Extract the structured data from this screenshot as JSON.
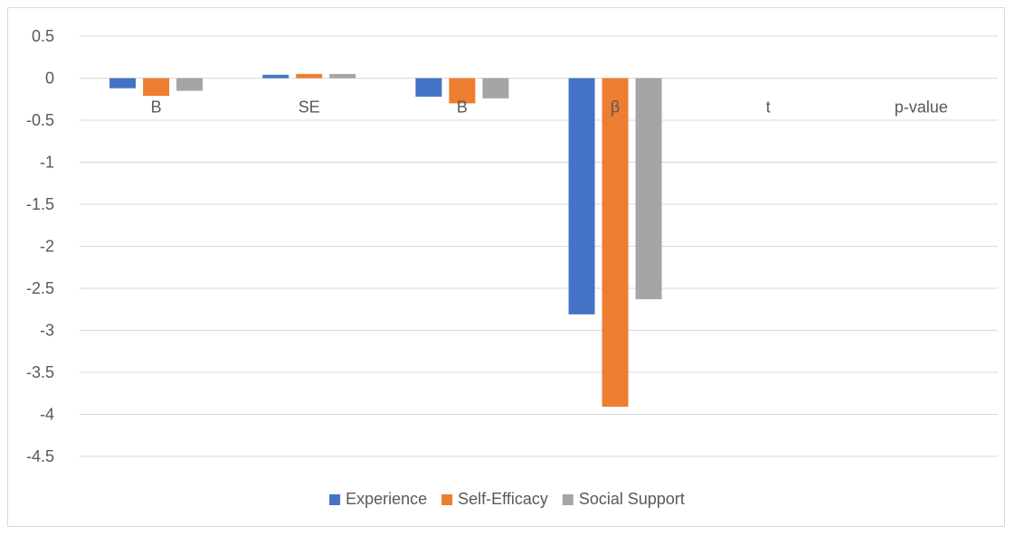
{
  "chart_data": {
    "type": "bar",
    "categories": [
      "B",
      "SE",
      "B",
      "β",
      "t",
      "p-value"
    ],
    "series": [
      {
        "name": "Experience",
        "color": "#4472C4",
        "values": [
          -0.12,
          0.04,
          -0.22,
          -2.81,
          null,
          null
        ]
      },
      {
        "name": "Self-Efficacy",
        "color": "#ED7D31",
        "values": [
          -0.21,
          0.05,
          -0.3,
          -3.91,
          null,
          null
        ]
      },
      {
        "name": "Social Support",
        "color": "#A5A5A5",
        "values": [
          -0.15,
          0.05,
          -0.24,
          -2.63,
          null,
          null
        ]
      }
    ],
    "ylim": [
      -4.5,
      0.5
    ],
    "yticks": [
      0.5,
      0,
      -0.5,
      -1,
      -1.5,
      -2,
      -2.5,
      -3,
      -3.5,
      -4,
      -4.5
    ],
    "ytick_labels": [
      "0.5",
      "0",
      "-0.5",
      "-1",
      "-1.5",
      "-2",
      "-2.5",
      "-3",
      "-3.5",
      "-4",
      "-4.5"
    ],
    "grid": true,
    "legend_position": "bottom"
  }
}
